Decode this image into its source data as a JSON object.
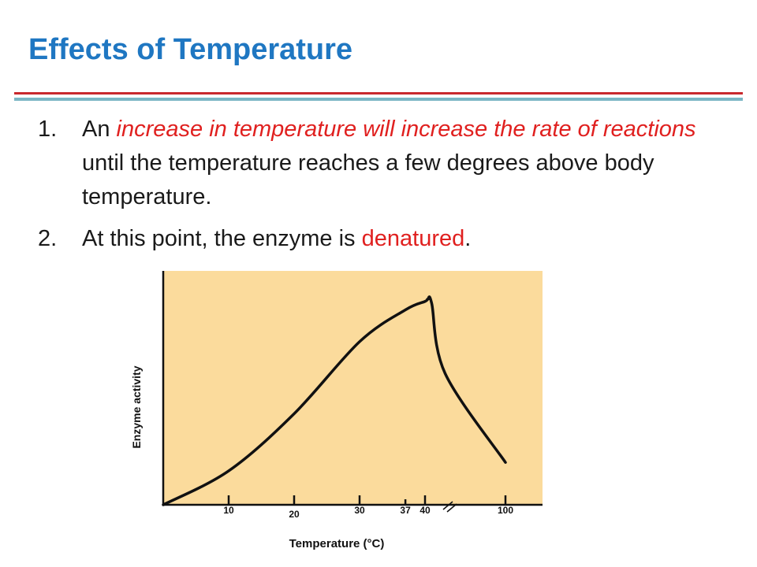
{
  "slide": {
    "title": "Effects of Temperature",
    "bullets": [
      {
        "number": "1.",
        "parts": [
          {
            "text": "An ",
            "style": "normal"
          },
          {
            "text": "increase in temperature will increase the rate of reactions",
            "style": "red-italic"
          },
          {
            "text": " until the temperature reaches a few degrees above body temperature.",
            "style": "normal"
          }
        ]
      },
      {
        "number": "2.",
        "parts": [
          {
            "text": "At this point, the enzyme is ",
            "style": "normal"
          },
          {
            "text": "denatured",
            "style": "red"
          },
          {
            "text": ".",
            "style": "normal"
          }
        ]
      }
    ]
  },
  "chart_data": {
    "type": "line",
    "xlabel": "Temperature (°C)",
    "ylabel": "Enzyme activity",
    "x_ticks": [
      "10",
      "20",
      "30",
      "37",
      "40",
      "100"
    ],
    "axis_break_between": [
      "40",
      "100"
    ],
    "plot_background": "#fbdb9c",
    "line_color": "#111111",
    "series": [
      {
        "points": [
          {
            "x": 0,
            "y": 0
          },
          {
            "x": 10,
            "y": 0.16
          },
          {
            "x": 20,
            "y": 0.43
          },
          {
            "x": 30,
            "y": 0.77
          },
          {
            "x": 37,
            "y": 0.92
          },
          {
            "x": 40,
            "y": 0.96
          },
          {
            "x": 42,
            "y": 0.97
          },
          {
            "x": 45,
            "y": 0.95
          },
          {
            "x": 55,
            "y": 0.62
          },
          {
            "x": 100,
            "y": 0.2
          }
        ]
      }
    ]
  }
}
